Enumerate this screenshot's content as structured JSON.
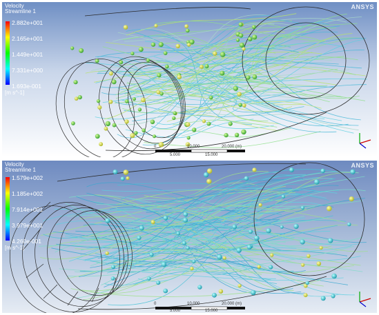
{
  "panels": {
    "top": {
      "legend_title_line1": "Velocity",
      "legend_title_line2": "Streamline 1",
      "legend_values": [
        "2.882e+001",
        "2.165e+001",
        "1.449e+001",
        "7.331e+000",
        "1.693e-001"
      ],
      "legend_unit": "[m s^-1]",
      "brand": "ANSYS",
      "scale_labels": [
        "0",
        "10.000",
        "20.000 (m)",
        "5.000",
        "15.000"
      ]
    },
    "bottom": {
      "legend_title_line1": "Velocity",
      "legend_title_line2": "Streamline 1",
      "legend_values": [
        "1.579e+002",
        "1.185e+002",
        "7.914e+001",
        "3.979e+001",
        "4.260e-001"
      ],
      "legend_unit": "[m s^-1]",
      "brand": "ANSYS",
      "scale_labels": [
        "0",
        "10.000",
        "20.000 (m)",
        "5.000",
        "15.000"
      ]
    }
  },
  "colors": {
    "background_top": "#ffffff",
    "background_bottom": "#a9bcd9",
    "streamline_cyan": "#5fd0e0",
    "streamline_green": "#9be07a",
    "sphere_green": "#54c84a",
    "sphere_cyan": "#33c8d8",
    "sphere_yellow": "#d6e23a",
    "wireframe": "#2a2a2a"
  }
}
